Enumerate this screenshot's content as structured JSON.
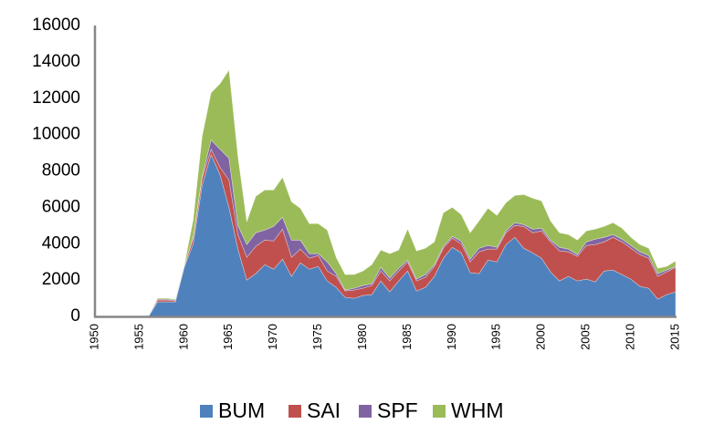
{
  "chart_data": {
    "type": "area",
    "stacked": true,
    "title": "",
    "xlabel": "",
    "ylabel": "",
    "xlim": [
      1950,
      2015
    ],
    "ylim": [
      0,
      16000
    ],
    "yticks": [
      0,
      2000,
      4000,
      6000,
      8000,
      10000,
      12000,
      14000,
      16000
    ],
    "xticks": [
      1950,
      1955,
      1960,
      1965,
      1970,
      1975,
      1980,
      1985,
      1990,
      1995,
      2000,
      2005,
      2010,
      2015
    ],
    "grid": false,
    "legend_position": "bottom",
    "x_start": 1950,
    "series": [
      {
        "name": "BUM",
        "color": "#4F81BD",
        "values": [
          0,
          0,
          0,
          0,
          0,
          0,
          0,
          800,
          800,
          800,
          2700,
          4000,
          7200,
          8900,
          7800,
          6000,
          3700,
          2000,
          2350,
          2850,
          2600,
          3150,
          2200,
          2950,
          2600,
          2750,
          1950,
          1600,
          1050,
          1000,
          1150,
          1200,
          1950,
          1350,
          1950,
          2500,
          1400,
          1600,
          2200,
          3200,
          3800,
          3500,
          2400,
          2350,
          3100,
          3000,
          3950,
          4350,
          3750,
          3500,
          3200,
          2450,
          1950,
          2200,
          1950,
          2050,
          1900,
          2500,
          2550,
          2300,
          2050,
          1650,
          1550,
          950,
          1200,
          1350
        ]
      },
      {
        "name": "SAI",
        "color": "#C0504D",
        "values": [
          0,
          0,
          0,
          0,
          0,
          0,
          0,
          100,
          100,
          50,
          50,
          300,
          400,
          300,
          400,
          1500,
          800,
          1250,
          1500,
          1350,
          1550,
          1650,
          1050,
          750,
          600,
          600,
          550,
          600,
          350,
          450,
          400,
          500,
          550,
          600,
          550,
          500,
          550,
          550,
          550,
          550,
          500,
          500,
          600,
          1200,
          600,
          700,
          650,
          650,
          1200,
          1100,
          1500,
          1650,
          1650,
          1350,
          1350,
          1850,
          2050,
          1600,
          1800,
          1800,
          1700,
          1750,
          1650,
          1250,
          1250,
          1350
        ]
      },
      {
        "name": "SPF",
        "color": "#8064A2",
        "values": [
          0,
          0,
          0,
          0,
          0,
          0,
          0,
          50,
          50,
          50,
          0,
          100,
          100,
          500,
          1000,
          1200,
          500,
          700,
          750,
          550,
          800,
          650,
          950,
          500,
          250,
          100,
          500,
          150,
          50,
          100,
          150,
          100,
          200,
          150,
          150,
          100,
          100,
          150,
          100,
          100,
          100,
          150,
          150,
          200,
          200,
          100,
          100,
          150,
          100,
          200,
          150,
          100,
          200,
          150,
          100,
          200,
          300,
          250,
          150,
          150,
          150,
          150,
          150,
          150,
          100,
          50
        ]
      },
      {
        "name": "WHM",
        "color": "#9BBB59",
        "values": [
          0,
          0,
          0,
          0,
          0,
          0,
          0,
          50,
          50,
          50,
          50,
          900,
          2200,
          2600,
          3600,
          4850,
          3800,
          1250,
          2000,
          2200,
          2000,
          2200,
          2100,
          1750,
          1650,
          1650,
          1750,
          900,
          850,
          750,
          800,
          1050,
          950,
          1350,
          1000,
          1700,
          1550,
          1450,
          1250,
          1850,
          1600,
          1450,
          1450,
          1500,
          2050,
          1750,
          1550,
          1500,
          1650,
          1700,
          1500,
          1050,
          800,
          800,
          800,
          600,
          550,
          600,
          650,
          600,
          450,
          400,
          400,
          300,
          200,
          300
        ]
      }
    ]
  }
}
